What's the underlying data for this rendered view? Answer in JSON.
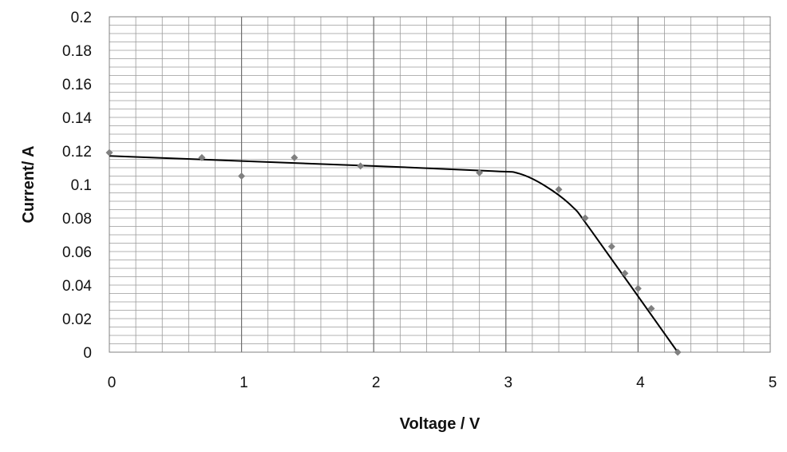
{
  "chart_data": {
    "type": "scatter",
    "title": "",
    "xlabel": "Voltage / V",
    "ylabel": "Current/ A",
    "xlim": [
      0,
      5
    ],
    "ylim": [
      0,
      0.2
    ],
    "x_ticks": [
      "0",
      "1",
      "2",
      "3",
      "4",
      "5"
    ],
    "y_ticks": [
      "0",
      "0.02",
      "0.04",
      "0.06",
      "0.08",
      "0.1",
      "0.12",
      "0.14",
      "0.16",
      "0.18",
      "0.2"
    ],
    "x_major_step": 1,
    "x_minor_step": 0.2,
    "y_minor_step": 0.005,
    "grid": true,
    "legend": "none",
    "series": [
      {
        "marker_color": "#808080",
        "points": [
          {
            "x": 0,
            "y": 0.119
          },
          {
            "x": 0.7,
            "y": 0.116
          },
          {
            "x": 1.0,
            "y": 0.105
          },
          {
            "x": 1.4,
            "y": 0.116
          },
          {
            "x": 1.9,
            "y": 0.111
          },
          {
            "x": 2.8,
            "y": 0.107
          },
          {
            "x": 3.4,
            "y": 0.097
          },
          {
            "x": 3.6,
            "y": 0.08
          },
          {
            "x": 3.8,
            "y": 0.063
          },
          {
            "x": 3.9,
            "y": 0.047
          },
          {
            "x": 4.0,
            "y": 0.038
          },
          {
            "x": 4.1,
            "y": 0.026
          },
          {
            "x": 4.3,
            "y": 0.0
          }
        ]
      }
    ],
    "trendline": {
      "color": "#000000",
      "points": [
        {
          "x": 0,
          "y": 0.117
        },
        {
          "x": 1.0,
          "y": 0.114
        },
        {
          "x": 2.0,
          "y": 0.111
        },
        {
          "x": 2.9,
          "y": 0.108
        },
        {
          "x": 3.1,
          "y": 0.1065
        },
        {
          "x": 3.3,
          "y": 0.099
        },
        {
          "x": 3.5,
          "y": 0.087
        },
        {
          "x": 3.65,
          "y": 0.072
        },
        {
          "x": 4.3,
          "y": 0.0
        }
      ]
    }
  }
}
